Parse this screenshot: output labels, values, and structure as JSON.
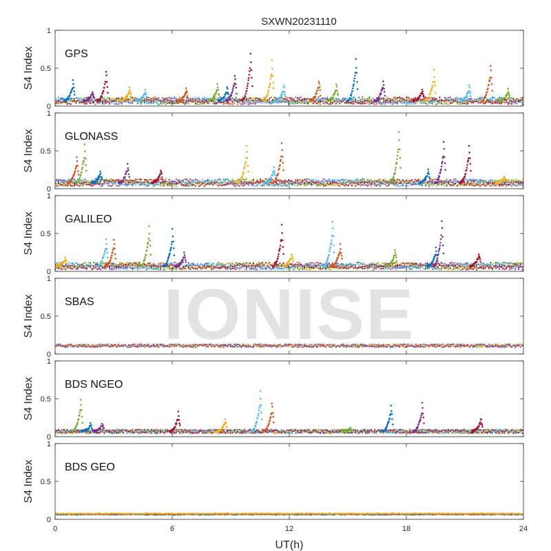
{
  "chart_data": {
    "type": "scatter",
    "title": "SXWN20231110",
    "watermark": "IONISE",
    "xlabel": "UT(h)",
    "xlim": [
      0,
      24
    ],
    "xticks": [
      0,
      6,
      12,
      18,
      24
    ],
    "series_colors": [
      "#0072BD",
      "#D95319",
      "#EDB120",
      "#7E2F8E",
      "#77AC30",
      "#4DBEEE",
      "#A2142F"
    ],
    "panels": [
      {
        "label": "GPS",
        "ylabel": "S4 Index",
        "ylim": [
          0,
          1
        ],
        "yticks": [
          0,
          0.5,
          1
        ],
        "baseline": 0.07,
        "spikes": [
          [
            0.9,
            0.36
          ],
          [
            1.9,
            0.2
          ],
          [
            2.6,
            0.5
          ],
          [
            3.8,
            0.25
          ],
          [
            4.6,
            0.22
          ],
          [
            6.7,
            0.24
          ],
          [
            8.3,
            0.3
          ],
          [
            8.8,
            0.27
          ],
          [
            9.2,
            0.44
          ],
          [
            10.0,
            0.76
          ],
          [
            11.1,
            0.64
          ],
          [
            11.7,
            0.28
          ],
          [
            13.5,
            0.36
          ],
          [
            14.4,
            0.3
          ],
          [
            15.4,
            0.66
          ],
          [
            16.8,
            0.35
          ],
          [
            18.8,
            0.23
          ],
          [
            19.4,
            0.5
          ],
          [
            21.2,
            0.28
          ],
          [
            22.3,
            0.58
          ],
          [
            23.2,
            0.23
          ]
        ]
      },
      {
        "label": "GLONASS",
        "ylabel": "S4 Index",
        "ylim": [
          0,
          1
        ],
        "yticks": [
          0,
          0.5,
          1
        ],
        "baseline": 0.08,
        "spikes": [
          [
            1.1,
            0.46
          ],
          [
            1.5,
            0.62
          ],
          [
            2.3,
            0.23
          ],
          [
            3.7,
            0.35
          ],
          [
            5.4,
            0.26
          ],
          [
            9.8,
            0.6
          ],
          [
            11.2,
            0.3
          ],
          [
            11.6,
            0.65
          ],
          [
            17.6,
            0.8
          ],
          [
            19.1,
            0.26
          ],
          [
            19.9,
            0.65
          ],
          [
            21.2,
            0.62
          ],
          [
            23.0,
            0.16
          ]
        ]
      },
      {
        "label": "GALILEO",
        "ylabel": "S4 Index",
        "ylim": [
          0,
          1
        ],
        "yticks": [
          0,
          0.5,
          1
        ],
        "baseline": 0.07,
        "spikes": [
          [
            0.5,
            0.2
          ],
          [
            2.6,
            0.46
          ],
          [
            3.0,
            0.46
          ],
          [
            4.8,
            0.65
          ],
          [
            6.0,
            0.6
          ],
          [
            6.6,
            0.25
          ],
          [
            11.6,
            0.65
          ],
          [
            12.1,
            0.25
          ],
          [
            14.2,
            0.72
          ],
          [
            14.6,
            0.38
          ],
          [
            17.4,
            0.3
          ],
          [
            19.5,
            0.33
          ],
          [
            19.8,
            0.72
          ],
          [
            21.7,
            0.25
          ]
        ]
      },
      {
        "label": "SBAS",
        "ylabel": "S4 Index",
        "ylim": [
          0,
          1
        ],
        "yticks": [
          0,
          0.5,
          1
        ],
        "baseline": 0.11,
        "spikes": []
      },
      {
        "label": "BDS NGEO",
        "ylabel": "S4 Index",
        "ylim": [
          0,
          1
        ],
        "yticks": [
          0,
          0.5,
          1
        ],
        "baseline": 0.07,
        "spikes": [
          [
            1.3,
            0.52
          ],
          [
            1.8,
            0.18
          ],
          [
            2.4,
            0.18
          ],
          [
            6.3,
            0.34
          ],
          [
            8.7,
            0.24
          ],
          [
            10.5,
            0.64
          ],
          [
            11.1,
            0.48
          ],
          [
            15.1,
            0.12
          ],
          [
            17.2,
            0.44
          ],
          [
            18.8,
            0.47
          ],
          [
            21.8,
            0.26
          ]
        ]
      },
      {
        "label": "BDS GEO",
        "ylabel": "S4 Index",
        "ylim": [
          0,
          1
        ],
        "yticks": [
          0,
          0.5,
          1
        ],
        "baseline": 0.07,
        "spikes": []
      }
    ]
  }
}
